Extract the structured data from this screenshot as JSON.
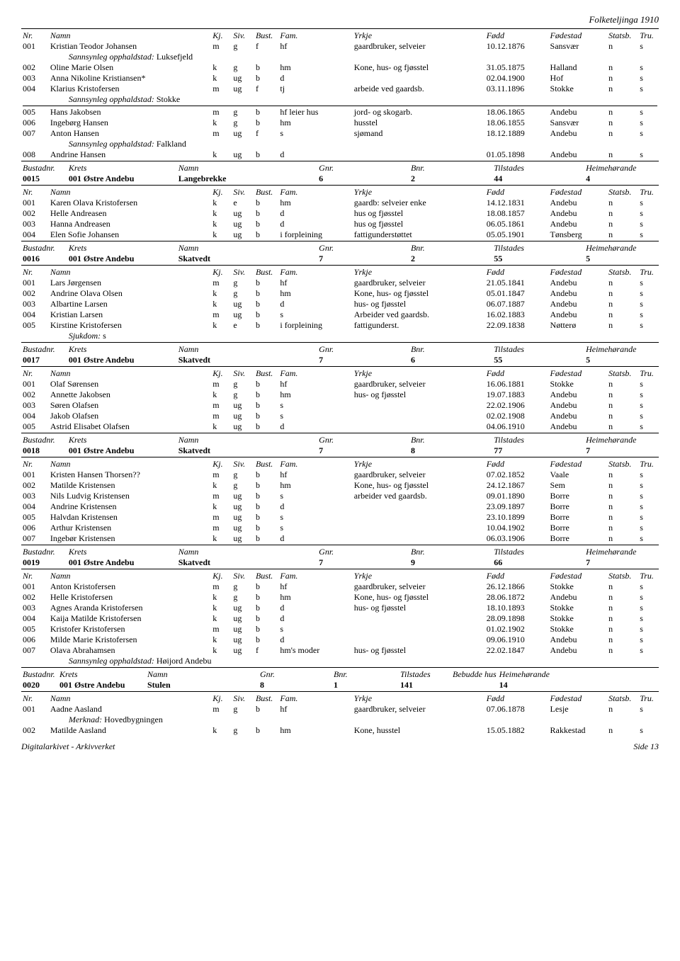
{
  "page_header": "Folketeljinga 1910",
  "footer_left": "Digitalarkivet - Arkivverket",
  "footer_right": "Side 13",
  "person_header": {
    "nr": "Nr.",
    "namn": "Namn",
    "kj": "Kj.",
    "siv": "Siv.",
    "bust": "Bust.",
    "fam": "Fam.",
    "yrkje": "Yrkje",
    "fodd": "Fødd",
    "fstad": "Fødestad",
    "statsb": "Statsb.",
    "tru": "Tru."
  },
  "bustad_header": {
    "nr": "Bustadnr.",
    "krets": "Krets",
    "namn": "Namn",
    "gnr": "Gnr.",
    "bnr": "Bnr.",
    "til": "Tilstades",
    "heim": "Heimehørande"
  },
  "bustad_header_hus": {
    "nr": "Bustadnr.",
    "krets": "Krets",
    "namn": "Namn",
    "gnr": "Gnr.",
    "bnr": "Bnr.",
    "til": "Tilstades",
    "bebudde": "Bebudde hus",
    "heim": "Heimehørande"
  },
  "sections": [
    {
      "type": "persons_cont",
      "rows": [
        {
          "nr": "001",
          "namn": "Kristian Teodor Johansen",
          "kj": "m",
          "siv": "g",
          "bust": "f",
          "fam": "hf",
          "yrkje": "gaardbruker, selveier",
          "fodd": "10.12.1876",
          "fstad": "Sansvær",
          "statsb": "n",
          "tru": "s"
        },
        {
          "sub": "Sannsynleg opphaldstad:",
          "subval": "Luksefjeld"
        },
        {
          "nr": "002",
          "namn": "Oline Marie Olsen",
          "kj": "k",
          "siv": "g",
          "bust": "b",
          "fam": "hm",
          "yrkje": "Kone, hus- og fjøsstel",
          "fodd": "31.05.1875",
          "fstad": "Halland",
          "statsb": "n",
          "tru": "s"
        },
        {
          "nr": "003",
          "namn": "Anna Nikoline Kristiansen*",
          "kj": "k",
          "siv": "ug",
          "bust": "b",
          "fam": "d",
          "yrkje": "",
          "fodd": "02.04.1900",
          "fstad": "Hof",
          "statsb": "n",
          "tru": "s"
        },
        {
          "nr": "004",
          "namn": "Klarius Kristofersen",
          "kj": "m",
          "siv": "ug",
          "bust": "f",
          "fam": "tj",
          "yrkje": "arbeide ved gaardsb.",
          "fodd": "03.11.1896",
          "fstad": "Stokke",
          "statsb": "n",
          "tru": "s"
        },
        {
          "sub": "Sannsynleg opphaldstad:",
          "subval": "Stokke"
        },
        {
          "hr": true
        },
        {
          "nr": "005",
          "namn": "Hans Jakobsen",
          "kj": "m",
          "siv": "g",
          "bust": "b",
          "fam": "hf leier hus",
          "yrkje": "jord- og skogarb.",
          "fodd": "18.06.1865",
          "fstad": "Andebu",
          "statsb": "n",
          "tru": "s"
        },
        {
          "nr": "006",
          "namn": "Ingebørg Hansen",
          "kj": "k",
          "siv": "g",
          "bust": "b",
          "fam": "hm",
          "yrkje": "husstel",
          "fodd": "18.06.1855",
          "fstad": "Sansvær",
          "statsb": "n",
          "tru": "s"
        },
        {
          "nr": "007",
          "namn": "Anton Hansen",
          "kj": "m",
          "siv": "ug",
          "bust": "f",
          "fam": "s",
          "yrkje": "sjømand",
          "fodd": "18.12.1889",
          "fstad": "Andebu",
          "statsb": "n",
          "tru": "s"
        },
        {
          "sub": "Sannsynleg opphaldstad:",
          "subval": "Falkland"
        },
        {
          "nr": "008",
          "namn": "Andrine Hansen",
          "kj": "k",
          "siv": "ug",
          "bust": "b",
          "fam": "d",
          "yrkje": "",
          "fodd": "01.05.1898",
          "fstad": "Andebu",
          "statsb": "n",
          "tru": "s"
        }
      ]
    },
    {
      "type": "bustad",
      "data": {
        "nr": "0015",
        "krets": "001 Østre Andebu",
        "namn": "Langebrekke",
        "gnr": "6",
        "bnr": "2",
        "til": "44",
        "heim": "4"
      },
      "rows": [
        {
          "nr": "001",
          "namn": "Karen Olava Kristofersen",
          "kj": "k",
          "siv": "e",
          "bust": "b",
          "fam": "hm",
          "yrkje": "gaardb: selveier enke",
          "fodd": "14.12.1831",
          "fstad": "Andebu",
          "statsb": "n",
          "tru": "s"
        },
        {
          "nr": "002",
          "namn": "Helle Andreasen",
          "kj": "k",
          "siv": "ug",
          "bust": "b",
          "fam": "d",
          "yrkje": "hus og fjøsstel",
          "fodd": "18.08.1857",
          "fstad": "Andebu",
          "statsb": "n",
          "tru": "s"
        },
        {
          "nr": "003",
          "namn": "Hanna Andreasen",
          "kj": "k",
          "siv": "ug",
          "bust": "b",
          "fam": "d",
          "yrkje": "hus og fjøsstel",
          "fodd": "06.05.1861",
          "fstad": "Andebu",
          "statsb": "n",
          "tru": "s"
        },
        {
          "nr": "004",
          "namn": "Elen Sofie Johansen",
          "kj": "k",
          "siv": "ug",
          "bust": "b",
          "fam": "i forpleining",
          "yrkje": "fattigunderstøttet",
          "fodd": "05.05.1901",
          "fstad": "Tønsberg",
          "statsb": "n",
          "tru": "s"
        }
      ]
    },
    {
      "type": "bustad",
      "data": {
        "nr": "0016",
        "krets": "001 Østre Andebu",
        "namn": "Skatvedt",
        "gnr": "7",
        "bnr": "2",
        "til": "55",
        "heim": "5"
      },
      "rows": [
        {
          "nr": "001",
          "namn": "Lars Jørgensen",
          "kj": "m",
          "siv": "g",
          "bust": "b",
          "fam": "hf",
          "yrkje": "gaardbruker, selveier",
          "fodd": "21.05.1841",
          "fstad": "Andebu",
          "statsb": "n",
          "tru": "s"
        },
        {
          "nr": "002",
          "namn": "Andrine Olava Olsen",
          "kj": "k",
          "siv": "g",
          "bust": "b",
          "fam": "hm",
          "yrkje": "Kone, hus- og fjøsstel",
          "fodd": "05.01.1847",
          "fstad": "Andebu",
          "statsb": "n",
          "tru": "s"
        },
        {
          "nr": "003",
          "namn": "Albartine Larsen",
          "kj": "k",
          "siv": "ug",
          "bust": "b",
          "fam": "d",
          "yrkje": "hus- og fjøsstel",
          "fodd": "06.07.1887",
          "fstad": "Andebu",
          "statsb": "n",
          "tru": "s"
        },
        {
          "nr": "004",
          "namn": "Kristian Larsen",
          "kj": "m",
          "siv": "ug",
          "bust": "b",
          "fam": "s",
          "yrkje": "Arbeider ved gaardsb.",
          "fodd": "16.02.1883",
          "fstad": "Andebu",
          "statsb": "n",
          "tru": "s"
        },
        {
          "nr": "005",
          "namn": "Kirstine Kristofersen",
          "kj": "k",
          "siv": "e",
          "bust": "b",
          "fam": "i forpleining",
          "yrkje": "fattigunderst.",
          "fodd": "22.09.1838",
          "fstad": "Nøtterø",
          "statsb": "n",
          "tru": "s"
        },
        {
          "sub": "Sjukdom:",
          "subval": "s"
        }
      ]
    },
    {
      "type": "bustad",
      "data": {
        "nr": "0017",
        "krets": "001 Østre Andebu",
        "namn": "Skatvedt",
        "gnr": "7",
        "bnr": "6",
        "til": "55",
        "heim": "5"
      },
      "rows": [
        {
          "nr": "001",
          "namn": "Olaf Sørensen",
          "kj": "m",
          "siv": "g",
          "bust": "b",
          "fam": "hf",
          "yrkje": "gaardbruker, selveier",
          "fodd": "16.06.1881",
          "fstad": "Stokke",
          "statsb": "n",
          "tru": "s"
        },
        {
          "nr": "002",
          "namn": "Annette Jakobsen",
          "kj": "k",
          "siv": "g",
          "bust": "b",
          "fam": "hm",
          "yrkje": "hus- og fjøsstel",
          "fodd": "19.07.1883",
          "fstad": "Andebu",
          "statsb": "n",
          "tru": "s"
        },
        {
          "nr": "003",
          "namn": "Søren Olafsen",
          "kj": "m",
          "siv": "ug",
          "bust": "b",
          "fam": "s",
          "yrkje": "",
          "fodd": "22.02.1906",
          "fstad": "Andebu",
          "statsb": "n",
          "tru": "s"
        },
        {
          "nr": "004",
          "namn": "Jakob Olafsen",
          "kj": "m",
          "siv": "ug",
          "bust": "b",
          "fam": "s",
          "yrkje": "",
          "fodd": "02.02.1908",
          "fstad": "Andebu",
          "statsb": "n",
          "tru": "s"
        },
        {
          "nr": "005",
          "namn": "Astrid Elisabet Olafsen",
          "kj": "k",
          "siv": "ug",
          "bust": "b",
          "fam": "d",
          "yrkje": "",
          "fodd": "04.06.1910",
          "fstad": "Andebu",
          "statsb": "n",
          "tru": "s"
        }
      ]
    },
    {
      "type": "bustad",
      "data": {
        "nr": "0018",
        "krets": "001 Østre Andebu",
        "namn": "Skatvedt",
        "gnr": "7",
        "bnr": "8",
        "til": "77",
        "heim": "7"
      },
      "rows": [
        {
          "nr": "001",
          "namn": "Kristen Hansen Thorsen??",
          "kj": "m",
          "siv": "g",
          "bust": "b",
          "fam": "hf",
          "yrkje": "gaardbruker, selveier",
          "fodd": "07.02.1852",
          "fstad": "Vaale",
          "statsb": "n",
          "tru": "s"
        },
        {
          "nr": "002",
          "namn": "Matilde Kristensen",
          "kj": "k",
          "siv": "g",
          "bust": "b",
          "fam": "hm",
          "yrkje": "Kone, hus- og fjøsstel",
          "fodd": "24.12.1867",
          "fstad": "Sem",
          "statsb": "n",
          "tru": "s"
        },
        {
          "nr": "003",
          "namn": "Nils Ludvig Kristensen",
          "kj": "m",
          "siv": "ug",
          "bust": "b",
          "fam": "s",
          "yrkje": "arbeider ved gaardsb.",
          "fodd": "09.01.1890",
          "fstad": "Borre",
          "statsb": "n",
          "tru": "s"
        },
        {
          "nr": "004",
          "namn": "Andrine Kristensen",
          "kj": "k",
          "siv": "ug",
          "bust": "b",
          "fam": "d",
          "yrkje": "",
          "fodd": "23.09.1897",
          "fstad": "Borre",
          "statsb": "n",
          "tru": "s"
        },
        {
          "nr": "005",
          "namn": "Halvdan Kristensen",
          "kj": "m",
          "siv": "ug",
          "bust": "b",
          "fam": "s",
          "yrkje": "",
          "fodd": "23.10.1899",
          "fstad": "Borre",
          "statsb": "n",
          "tru": "s"
        },
        {
          "nr": "006",
          "namn": "Arthur Kristensen",
          "kj": "m",
          "siv": "ug",
          "bust": "b",
          "fam": "s",
          "yrkje": "",
          "fodd": "10.04.1902",
          "fstad": "Borre",
          "statsb": "n",
          "tru": "s"
        },
        {
          "nr": "007",
          "namn": "Ingebør Kristensen",
          "kj": "k",
          "siv": "ug",
          "bust": "b",
          "fam": "d",
          "yrkje": "",
          "fodd": "06.03.1906",
          "fstad": "Borre",
          "statsb": "n",
          "tru": "s"
        }
      ]
    },
    {
      "type": "bustad",
      "data": {
        "nr": "0019",
        "krets": "001 Østre Andebu",
        "namn": "Skatvedt",
        "gnr": "7",
        "bnr": "9",
        "til": "66",
        "heim": "7"
      },
      "rows": [
        {
          "nr": "001",
          "namn": "Anton Kristofersen",
          "kj": "m",
          "siv": "g",
          "bust": "b",
          "fam": "hf",
          "yrkje": "gaardbruker, selveier",
          "fodd": "26.12.1866",
          "fstad": "Stokke",
          "statsb": "n",
          "tru": "s"
        },
        {
          "nr": "002",
          "namn": "Helle Kristofersen",
          "kj": "k",
          "siv": "g",
          "bust": "b",
          "fam": "hm",
          "yrkje": "Kone, hus- og fjøsstel",
          "fodd": "28.06.1872",
          "fstad": "Andebu",
          "statsb": "n",
          "tru": "s"
        },
        {
          "nr": "003",
          "namn": "Agnes Aranda Kristofersen",
          "kj": "k",
          "siv": "ug",
          "bust": "b",
          "fam": "d",
          "yrkje": "hus- og fjøsstel",
          "fodd": "18.10.1893",
          "fstad": "Stokke",
          "statsb": "n",
          "tru": "s"
        },
        {
          "nr": "004",
          "namn": "Kaija Matilde Kristofersen",
          "kj": "k",
          "siv": "ug",
          "bust": "b",
          "fam": "d",
          "yrkje": "",
          "fodd": "28.09.1898",
          "fstad": "Stokke",
          "statsb": "n",
          "tru": "s"
        },
        {
          "nr": "005",
          "namn": "Kristofer Kristofersen",
          "kj": "m",
          "siv": "ug",
          "bust": "b",
          "fam": "s",
          "yrkje": "",
          "fodd": "01.02.1902",
          "fstad": "Stokke",
          "statsb": "n",
          "tru": "s"
        },
        {
          "nr": "006",
          "namn": "Milde Marie Kristofersen",
          "kj": "k",
          "siv": "ug",
          "bust": "b",
          "fam": "d",
          "yrkje": "",
          "fodd": "09.06.1910",
          "fstad": "Andebu",
          "statsb": "n",
          "tru": "s"
        },
        {
          "nr": "007",
          "namn": "Olava Abrahamsen",
          "kj": "k",
          "siv": "ug",
          "bust": "f",
          "fam": "hm's moder",
          "yrkje": "hus- og fjøsstel",
          "fodd": "22.02.1847",
          "fstad": "Andebu",
          "statsb": "n",
          "tru": "s"
        },
        {
          "sub": "Sannsynleg opphaldstad:",
          "subval": "Høijord Andebu"
        }
      ]
    },
    {
      "type": "bustad_hus",
      "data": {
        "nr": "0020",
        "krets": "001 Østre Andebu",
        "namn": "Stulen",
        "gnr": "8",
        "bnr": "1",
        "til": "141",
        "heim": "14"
      },
      "rows": [
        {
          "nr": "001",
          "namn": "Aadne Aasland",
          "kj": "m",
          "siv": "g",
          "bust": "b",
          "fam": "hf",
          "yrkje": "gaardbruker, selveier",
          "fodd": "07.06.1878",
          "fstad": "Lesje",
          "statsb": "n",
          "tru": "s"
        },
        {
          "sub": "Merknad:",
          "subval": "Hovedbygningen"
        },
        {
          "nr": "002",
          "namn": "Matilde Aasland",
          "kj": "k",
          "siv": "g",
          "bust": "b",
          "fam": "hm",
          "yrkje": "Kone, husstel",
          "fodd": "15.05.1882",
          "fstad": "Rakkestad",
          "statsb": "n",
          "tru": "s"
        }
      ]
    }
  ]
}
